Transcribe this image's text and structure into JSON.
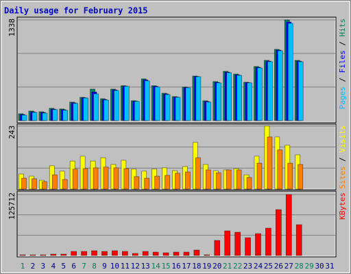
{
  "chart_data": [
    {
      "type": "bar",
      "title": "Daily usage for February 2015",
      "legend_separator": " / ",
      "ylim": [
        0,
        1338
      ],
      "yticks": [
        1338
      ],
      "series": [
        {
          "name": "Hits",
          "color": "#008060",
          "values": [
            91,
            127,
            118,
            164,
            155,
            246,
            309,
            419,
            291,
            419,
            464,
            264,
            555,
            464,
            364,
            319,
            446,
            592,
            264,
            519,
            655,
            619,
            510,
            719,
            801,
            947,
            1338,
            801,
            null,
            null,
            null
          ]
        },
        {
          "name": "Files",
          "color": "#0000ff",
          "values": [
            80,
            116,
            108,
            152,
            144,
            236,
            303,
            380,
            280,
            408,
            458,
            258,
            540,
            454,
            354,
            313,
            440,
            586,
            254,
            508,
            644,
            608,
            504,
            708,
            790,
            936,
            1310,
            790,
            null,
            null,
            null
          ]
        },
        {
          "name": "Pages",
          "color": "#00c0ff",
          "values": [
            73,
            109,
            100,
            146,
            137,
            228,
            300,
            355,
            273,
            400,
            455,
            255,
            528,
            446,
            346,
            309,
            437,
            583,
            246,
            501,
            637,
            601,
            501,
            701,
            783,
            928,
            1292,
            783,
            null,
            null,
            null
          ]
        }
      ]
    },
    {
      "type": "bar",
      "legend_separator": " / ",
      "ylim": [
        0,
        243
      ],
      "yticks": [
        243
      ],
      "series": [
        {
          "name": "Visits",
          "color": "#ffff00",
          "values": [
            58,
            50,
            34,
            90,
            69,
            108,
            127,
            108,
            121,
            95,
            111,
            77,
            69,
            77,
            82,
            71,
            87,
            180,
            95,
            71,
            74,
            79,
            55,
            127,
            243,
            201,
            169,
            132,
            null,
            null,
            null
          ]
        },
        {
          "name": "Sites",
          "color": "#ff8000",
          "values": [
            42,
            40,
            29,
            55,
            37,
            77,
            79,
            82,
            85,
            82,
            79,
            48,
            42,
            50,
            53,
            61,
            66,
            121,
            74,
            63,
            74,
            74,
            45,
            100,
            201,
            151,
            100,
            95,
            null,
            null,
            null
          ]
        }
      ]
    },
    {
      "type": "bar",
      "ylim": [
        0,
        125712
      ],
      "yticks": [
        125712
      ],
      "categories": [
        "1",
        "2",
        "3",
        "4",
        "5",
        "6",
        "7",
        "8",
        "9",
        "10",
        "11",
        "12",
        "13",
        "14",
        "15",
        "16",
        "17",
        "18",
        "19",
        "20",
        "21",
        "22",
        "23",
        "24",
        "25",
        "26",
        "27",
        "28",
        "29",
        "30",
        "31"
      ],
      "category_color": "#000080",
      "highlight_color": "#00805c",
      "highlight": [
        "1",
        "7",
        "8",
        "14",
        "15",
        "21",
        "22",
        "28",
        "29"
      ],
      "series": [
        {
          "name": "KBytes",
          "color": "#ff0000",
          "values": [
            1412,
            1412,
            1412,
            2825,
            2825,
            8475,
            8475,
            9887,
            8475,
            9887,
            8475,
            4237,
            8475,
            7062,
            5650,
            7062,
            7062,
            11300,
            1412,
            31075,
            50850,
            48025,
            36725,
            45200,
            56500,
            94638,
            125712,
            63562,
            null,
            null,
            null
          ]
        }
      ]
    }
  ]
}
